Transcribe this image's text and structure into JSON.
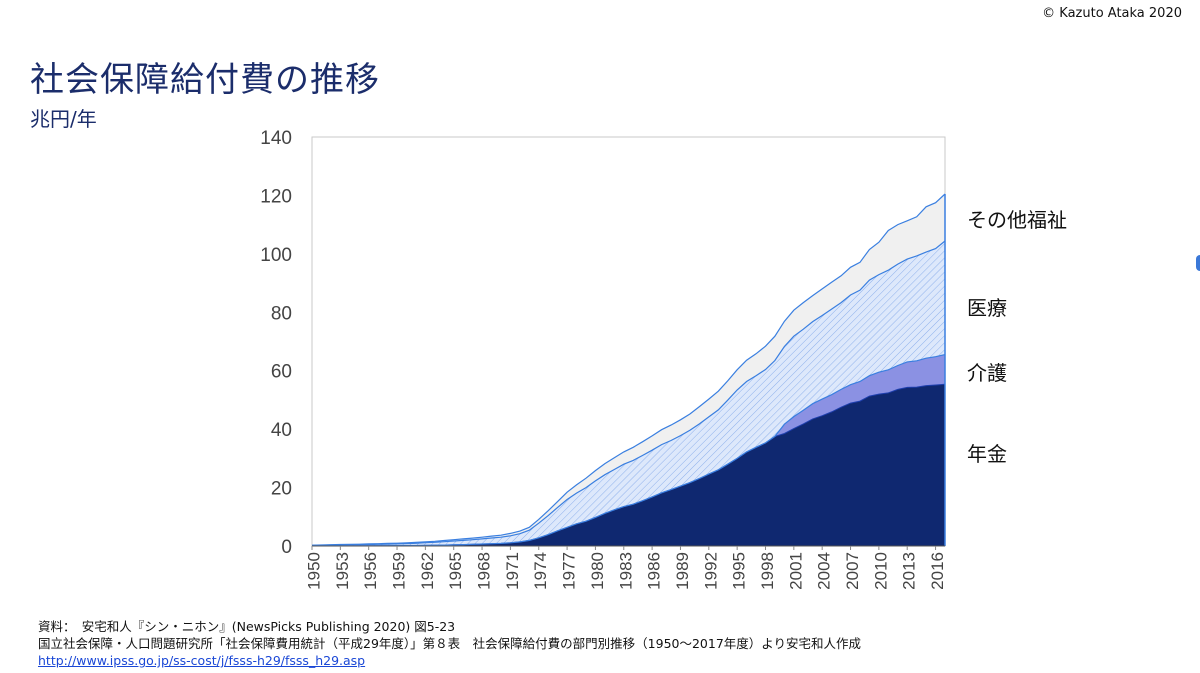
{
  "copyright": "© Kazuto Ataka 2020",
  "title": "社会保障給付費の推移",
  "unit": "兆円/年",
  "accent_color": "#1b2d6b",
  "colors": {
    "pension": "#0f2870",
    "care": "#8b91e3",
    "medical": "#dbe6fb",
    "other": "#f0f0f0",
    "line": "#3a7fe0"
  },
  "chart_data": {
    "type": "area",
    "stacked": true,
    "title": "社会保障給付費の推移",
    "ylabel": "兆円/年",
    "xlabel": "",
    "ylim": [
      0,
      140
    ],
    "yticks": [
      0,
      20,
      40,
      60,
      80,
      100,
      120,
      140
    ],
    "x_tick_labels": [
      "1950",
      "1953",
      "1956",
      "1959",
      "1962",
      "1965",
      "1968",
      "1971",
      "1974",
      "1977",
      "1980",
      "1983",
      "1986",
      "1989",
      "1992",
      "1995",
      "1998",
      "2001",
      "2004",
      "2007",
      "2010",
      "2013",
      "2016"
    ],
    "x": [
      1950,
      1951,
      1952,
      1953,
      1954,
      1955,
      1956,
      1957,
      1958,
      1959,
      1960,
      1961,
      1962,
      1963,
      1964,
      1965,
      1966,
      1967,
      1968,
      1969,
      1970,
      1971,
      1972,
      1973,
      1974,
      1975,
      1976,
      1977,
      1978,
      1979,
      1980,
      1981,
      1982,
      1983,
      1984,
      1985,
      1986,
      1987,
      1988,
      1989,
      1990,
      1991,
      1992,
      1993,
      1994,
      1995,
      1996,
      1997,
      1998,
      1999,
      2000,
      2001,
      2002,
      2003,
      2004,
      2005,
      2006,
      2007,
      2008,
      2009,
      2010,
      2011,
      2012,
      2013,
      2014,
      2015,
      2016,
      2017
    ],
    "series": [
      {
        "name": "年金",
        "values": [
          0.02,
          0.03,
          0.04,
          0.05,
          0.06,
          0.07,
          0.08,
          0.09,
          0.11,
          0.13,
          0.15,
          0.18,
          0.22,
          0.26,
          0.32,
          0.4,
          0.48,
          0.57,
          0.67,
          0.78,
          0.9,
          1.1,
          1.4,
          1.9,
          2.8,
          3.9,
          5.2,
          6.4,
          7.6,
          8.5,
          9.8,
          11.2,
          12.4,
          13.5,
          14.3,
          15.5,
          16.8,
          18.2,
          19.3,
          20.5,
          21.7,
          23.1,
          24.6,
          26.1,
          28.0,
          30.0,
          32.2,
          33.8,
          35.3,
          37.5,
          38.5,
          40.2,
          41.8,
          43.5,
          44.6,
          45.9,
          47.5,
          48.9,
          49.6,
          51.3,
          52.0,
          52.4,
          53.6,
          54.3,
          54.4,
          54.9,
          55.1,
          55.4
        ]
      },
      {
        "name": "介護",
        "values": [
          0,
          0,
          0,
          0,
          0,
          0,
          0,
          0,
          0,
          0,
          0,
          0,
          0,
          0,
          0,
          0,
          0,
          0,
          0,
          0,
          0,
          0,
          0,
          0,
          0,
          0,
          0,
          0,
          0,
          0,
          0,
          0,
          0,
          0,
          0,
          0,
          0,
          0,
          0,
          0,
          0,
          0,
          0,
          0,
          0,
          0,
          0,
          0,
          0,
          0,
          3.2,
          4.1,
          4.7,
          5.2,
          5.7,
          5.9,
          6.1,
          6.3,
          6.7,
          7.0,
          7.5,
          7.9,
          8.2,
          8.7,
          9.0,
          9.4,
          9.7,
          10.1
        ]
      },
      {
        "name": "医療",
        "values": [
          0.2,
          0.25,
          0.3,
          0.33,
          0.38,
          0.4,
          0.45,
          0.5,
          0.55,
          0.6,
          0.65,
          0.75,
          0.9,
          1.0,
          1.15,
          1.3,
          1.45,
          1.6,
          1.75,
          1.95,
          2.1,
          2.4,
          2.8,
          3.5,
          5.0,
          6.5,
          8.0,
          9.5,
          10.5,
          11.5,
          12.5,
          13.2,
          13.8,
          14.5,
          15.0,
          15.5,
          16.0,
          16.5,
          16.8,
          17.3,
          17.9,
          18.7,
          19.6,
          20.5,
          21.9,
          23.4,
          24.1,
          24.5,
          25.1,
          26.0,
          26.6,
          27.5,
          27.7,
          28.1,
          28.6,
          29.3,
          29.7,
          30.7,
          31.3,
          32.7,
          33.4,
          34.1,
          34.7,
          35.2,
          35.9,
          36.3,
          37.0,
          38.9
        ]
      },
      {
        "name": "その他福祉",
        "values": [
          0.05,
          0.07,
          0.1,
          0.12,
          0.14,
          0.16,
          0.18,
          0.2,
          0.22,
          0.24,
          0.27,
          0.3,
          0.33,
          0.36,
          0.4,
          0.45,
          0.5,
          0.55,
          0.6,
          0.65,
          0.7,
          0.8,
          0.9,
          1.0,
          1.3,
          1.7,
          2.0,
          2.5,
          2.8,
          3.2,
          3.5,
          3.8,
          4.0,
          4.2,
          4.5,
          4.7,
          4.9,
          5.1,
          5.3,
          5.4,
          5.6,
          5.9,
          6.1,
          6.4,
          6.6,
          6.9,
          7.3,
          7.5,
          8.0,
          8.3,
          8.6,
          8.9,
          9.1,
          8.9,
          9.1,
          9.2,
          9.2,
          9.5,
          9.5,
          10.5,
          11.1,
          13.6,
          13.5,
          13.1,
          13.4,
          15.5,
          15.7,
          16.1
        ]
      }
    ]
  },
  "series_labels": {
    "other": "その他福祉",
    "medical": "医療",
    "care": "介護",
    "pension": "年金"
  },
  "sources": {
    "line1": "資料：　安宅和人『シン・ニホン』(NewsPicks Publishing 2020) 図5-23",
    "line2": "国立社会保障・人口問題研究所「社会保障費用統計（平成29年度）」第８表　社会保障給付費の部門別推移（1950～2017年度）より安宅和人作成",
    "link": "http://www.ipss.go.jp/ss-cost/j/fsss-h29/fsss_h29.asp"
  }
}
